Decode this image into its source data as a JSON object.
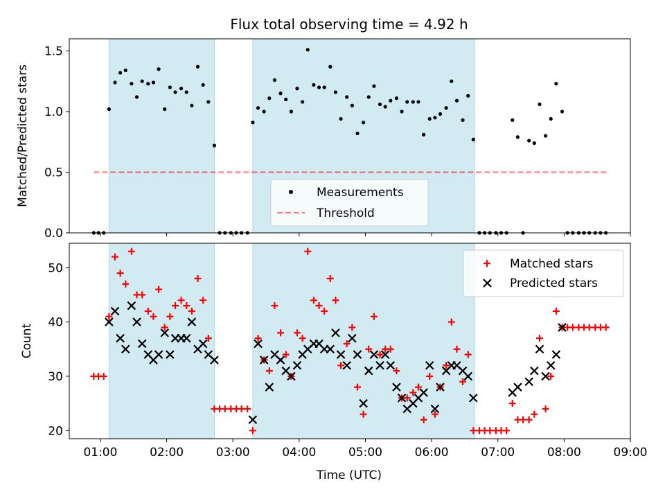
{
  "figure": {
    "title": "Flux total observing time = 4.92 h"
  },
  "colors": {
    "shade": "#add8e6",
    "measurement": "#000000",
    "threshold": "#ff0000",
    "matched": "#ff0000",
    "predicted": "#000000"
  },
  "chart_data": [
    {
      "type": "scatter",
      "panel": "top",
      "title": "Flux total observing time = 4.92 h",
      "xlabel": "",
      "ylabel": "Matched/Predicted stars",
      "xlim": [
        0.53,
        9.0
      ],
      "ylim": [
        0.0,
        1.6
      ],
      "yticks": [
        0.0,
        0.5,
        1.0,
        1.5
      ],
      "ytick_labels": [
        "0.0",
        "0.5",
        "1.0",
        "1.5"
      ],
      "legend_location": "lower center",
      "shaded_intervals_hours": [
        [
          1.13,
          2.72
        ],
        [
          3.3,
          6.65
        ]
      ],
      "threshold": {
        "name": "Threshold",
        "y": 0.5,
        "x_range": [
          0.9,
          8.67
        ],
        "style": "dashed"
      },
      "series": [
        {
          "name": "Measurements",
          "marker": "dot",
          "x": [
            0.9,
            0.97,
            1.05,
            1.13,
            1.22,
            1.3,
            1.38,
            1.47,
            1.55,
            1.63,
            1.72,
            1.8,
            1.88,
            1.97,
            2.05,
            2.13,
            2.22,
            2.3,
            2.38,
            2.47,
            2.55,
            2.63,
            2.72,
            2.8,
            2.88,
            2.97,
            3.05,
            3.13,
            3.22,
            3.3,
            3.38,
            3.47,
            3.55,
            3.63,
            3.72,
            3.8,
            3.88,
            3.97,
            4.05,
            4.13,
            4.22,
            4.3,
            4.38,
            4.47,
            4.55,
            4.63,
            4.72,
            4.8,
            4.88,
            4.97,
            5.05,
            5.13,
            5.22,
            5.3,
            5.38,
            5.47,
            5.55,
            5.63,
            5.72,
            5.8,
            5.88,
            5.97,
            6.05,
            6.13,
            6.22,
            6.3,
            6.38,
            6.47,
            6.55,
            6.63,
            6.72,
            6.8,
            6.88,
            6.97,
            7.05,
            7.13,
            7.22,
            7.3,
            7.38,
            7.47,
            7.55,
            7.63,
            7.72,
            7.8,
            7.88,
            7.97,
            8.05,
            8.13,
            8.22,
            8.3,
            8.38,
            8.47,
            8.55,
            8.63
          ],
          "y": [
            0,
            0,
            0,
            1.02,
            1.24,
            1.32,
            1.34,
            1.23,
            1.12,
            1.25,
            1.23,
            1.24,
            1.35,
            1.02,
            1.2,
            1.16,
            1.19,
            1.16,
            1.05,
            1.37,
            1.22,
            1.08,
            0.72,
            0,
            0,
            0,
            0,
            0,
            0,
            0.91,
            1.03,
            1.0,
            1.11,
            1.26,
            1.15,
            1.1,
            1.0,
            1.19,
            1.08,
            1.51,
            1.22,
            1.2,
            1.2,
            1.37,
            1.16,
            0.94,
            1.12,
            1.05,
            0.82,
            0.91,
            1.12,
            1.21,
            1.06,
            1.04,
            1.09,
            1.11,
            1.0,
            1.08,
            1.08,
            1.08,
            0.81,
            0.94,
            0.95,
            0.98,
            1.03,
            1.25,
            1.09,
            0.93,
            1.13,
            0.77,
            0,
            0,
            0,
            0,
            0,
            0,
            0.93,
            0.79,
            0,
            0.76,
            0.74,
            1.06,
            0.8,
            0.94,
            1.23,
            1.0,
            0,
            0,
            0,
            0,
            0,
            0,
            0,
            0
          ]
        }
      ],
      "legend": [
        "Measurements",
        "Threshold"
      ]
    },
    {
      "type": "scatter",
      "panel": "bottom",
      "xlabel": "Time (UTC)",
      "ylabel": "Count",
      "xlim": [
        0.53,
        9.0
      ],
      "ylim": [
        18.5,
        54.5
      ],
      "yticks": [
        20,
        30,
        40,
        50
      ],
      "ytick_labels": [
        "20",
        "30",
        "40",
        "50"
      ],
      "xticks_hours": [
        1,
        2,
        3,
        4,
        5,
        6,
        7,
        8,
        9
      ],
      "xtick_labels": [
        "01:00",
        "02:00",
        "03:00",
        "04:00",
        "05:00",
        "06:00",
        "07:00",
        "08:00",
        "09:00"
      ],
      "legend_location": "upper right",
      "shaded_intervals_hours": [
        [
          1.13,
          2.72
        ],
        [
          3.3,
          6.65
        ]
      ],
      "series": [
        {
          "name": "Matched stars",
          "marker": "plus",
          "x": [
            0.9,
            0.97,
            1.05,
            1.13,
            1.22,
            1.3,
            1.38,
            1.47,
            1.55,
            1.63,
            1.72,
            1.8,
            1.88,
            1.97,
            2.05,
            2.13,
            2.22,
            2.3,
            2.38,
            2.47,
            2.55,
            2.63,
            2.72,
            2.8,
            2.88,
            2.97,
            3.05,
            3.13,
            3.22,
            3.3,
            3.38,
            3.47,
            3.55,
            3.63,
            3.72,
            3.8,
            3.88,
            3.97,
            4.05,
            4.13,
            4.22,
            4.3,
            4.38,
            4.47,
            4.55,
            4.63,
            4.72,
            4.8,
            4.88,
            4.97,
            5.05,
            5.13,
            5.22,
            5.3,
            5.38,
            5.47,
            5.55,
            5.63,
            5.72,
            5.8,
            5.88,
            5.97,
            6.05,
            6.13,
            6.22,
            6.3,
            6.38,
            6.47,
            6.55,
            6.63,
            6.72,
            6.8,
            6.88,
            6.97,
            7.05,
            7.13,
            7.22,
            7.3,
            7.38,
            7.47,
            7.55,
            7.63,
            7.72,
            7.8,
            7.88,
            7.97,
            8.05,
            8.13,
            8.22,
            8.3,
            8.38,
            8.47,
            8.55,
            8.63
          ],
          "y": [
            30,
            30,
            30,
            41,
            52,
            49,
            47,
            53,
            45,
            45,
            42,
            41,
            46,
            39,
            41,
            43,
            44,
            43,
            42,
            48,
            44,
            37,
            24,
            24,
            24,
            24,
            24,
            24,
            24,
            20,
            37,
            33,
            31,
            43,
            38,
            34,
            30,
            38,
            37,
            53,
            44,
            43,
            42,
            48,
            44,
            32,
            36,
            39,
            28,
            23,
            35,
            41,
            34,
            35,
            35,
            31,
            26,
            26,
            27,
            28,
            22,
            30,
            23,
            28,
            32,
            40,
            35,
            29,
            34,
            20,
            20,
            20,
            20,
            20,
            20,
            20,
            25,
            22,
            22,
            22,
            23,
            37,
            24,
            30,
            42,
            39,
            39,
            39,
            39,
            39,
            39,
            39,
            39,
            39
          ],
          "note_gap": "none"
        },
        {
          "name": "Predicted stars",
          "marker": "x",
          "x": [
            1.13,
            1.22,
            1.3,
            1.38,
            1.47,
            1.55,
            1.63,
            1.72,
            1.8,
            1.88,
            1.97,
            2.05,
            2.13,
            2.22,
            2.3,
            2.38,
            2.47,
            2.55,
            2.63,
            2.72,
            3.3,
            3.38,
            3.47,
            3.55,
            3.63,
            3.72,
            3.8,
            3.88,
            3.97,
            4.05,
            4.13,
            4.22,
            4.3,
            4.38,
            4.47,
            4.55,
            4.63,
            4.72,
            4.8,
            4.88,
            4.97,
            5.05,
            5.13,
            5.22,
            5.3,
            5.38,
            5.47,
            5.55,
            5.63,
            5.72,
            5.8,
            5.88,
            5.97,
            6.05,
            6.13,
            6.22,
            6.3,
            6.38,
            6.47,
            6.55,
            6.63,
            7.22,
            7.3,
            7.47,
            7.55,
            7.63,
            7.72,
            7.8,
            7.88,
            7.97
          ],
          "y": [
            40,
            42,
            37,
            35,
            43,
            40,
            36,
            34,
            33,
            34,
            38,
            34,
            37,
            37,
            37,
            40,
            35,
            36,
            34,
            33,
            22,
            36,
            33,
            28,
            34,
            33,
            31,
            30,
            32,
            34,
            35,
            36,
            36,
            35,
            35,
            38,
            34,
            32,
            37,
            34,
            25,
            31,
            34,
            32,
            34,
            32,
            28,
            26,
            24,
            25,
            26,
            27,
            32,
            24,
            28,
            31,
            32,
            32,
            31,
            30,
            26,
            27,
            28,
            29,
            31,
            35,
            30,
            32,
            34,
            39
          ]
        }
      ],
      "legend": [
        "Matched stars",
        "Predicted stars"
      ]
    }
  ]
}
